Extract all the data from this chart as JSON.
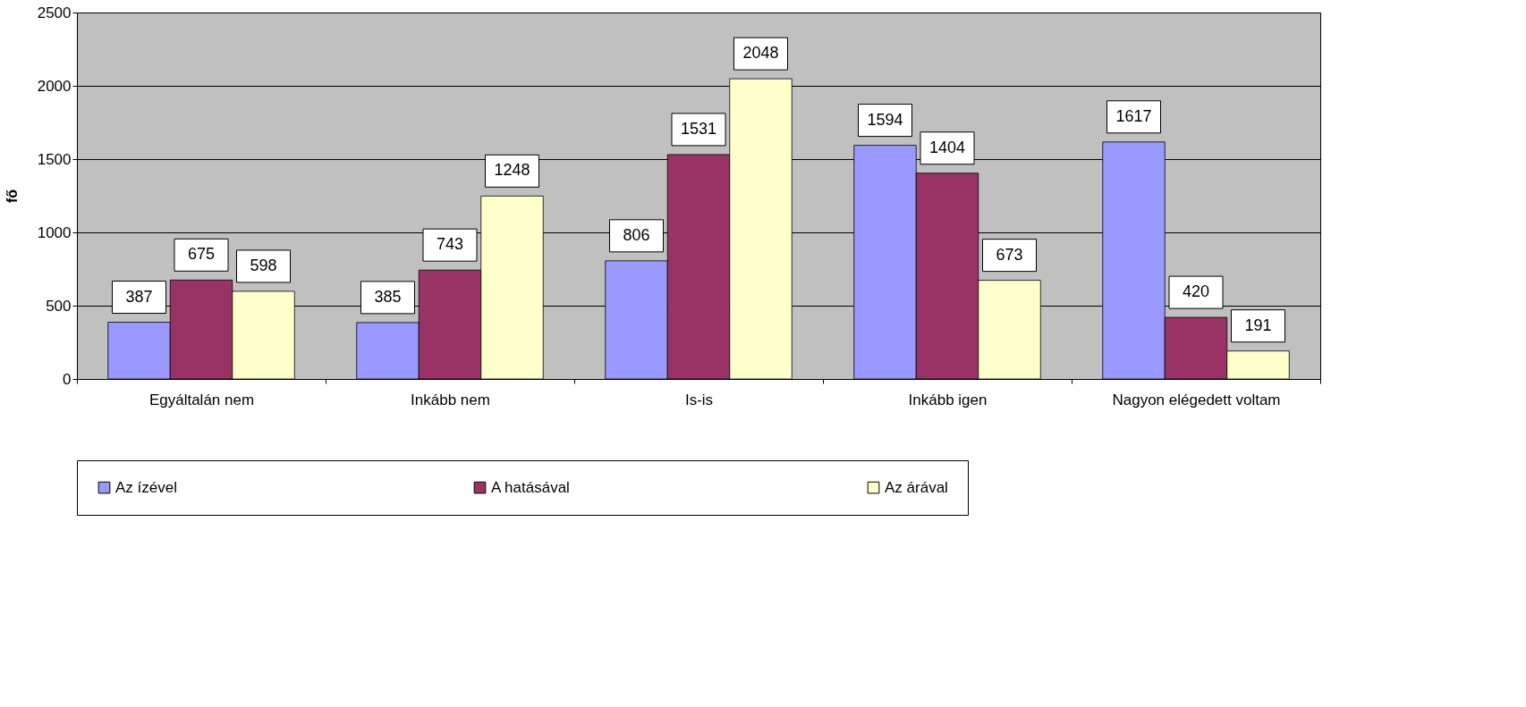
{
  "chart_data": {
    "type": "bar",
    "ylabel": "fő",
    "categories": [
      "Egyáltalán nem",
      "Inkább nem",
      "Is-is",
      "Inkább igen",
      "Nagyon elégedett voltam"
    ],
    "series": [
      {
        "name": "Az ízével",
        "color": "#9999ff",
        "values": [
          387,
          385,
          806,
          1594,
          1617
        ]
      },
      {
        "name": "A hatásával",
        "color": "#993366",
        "values": [
          675,
          743,
          1531,
          1404,
          420
        ]
      },
      {
        "name": "Az árával",
        "color": "#ffffcc",
        "values": [
          598,
          1248,
          2048,
          673,
          191
        ]
      }
    ],
    "ylim": [
      0,
      2500
    ],
    "yticks": [
      0,
      500,
      1000,
      1500,
      2000,
      2500
    ],
    "grid": "y",
    "legend": "bottom",
    "data_labels": true
  }
}
